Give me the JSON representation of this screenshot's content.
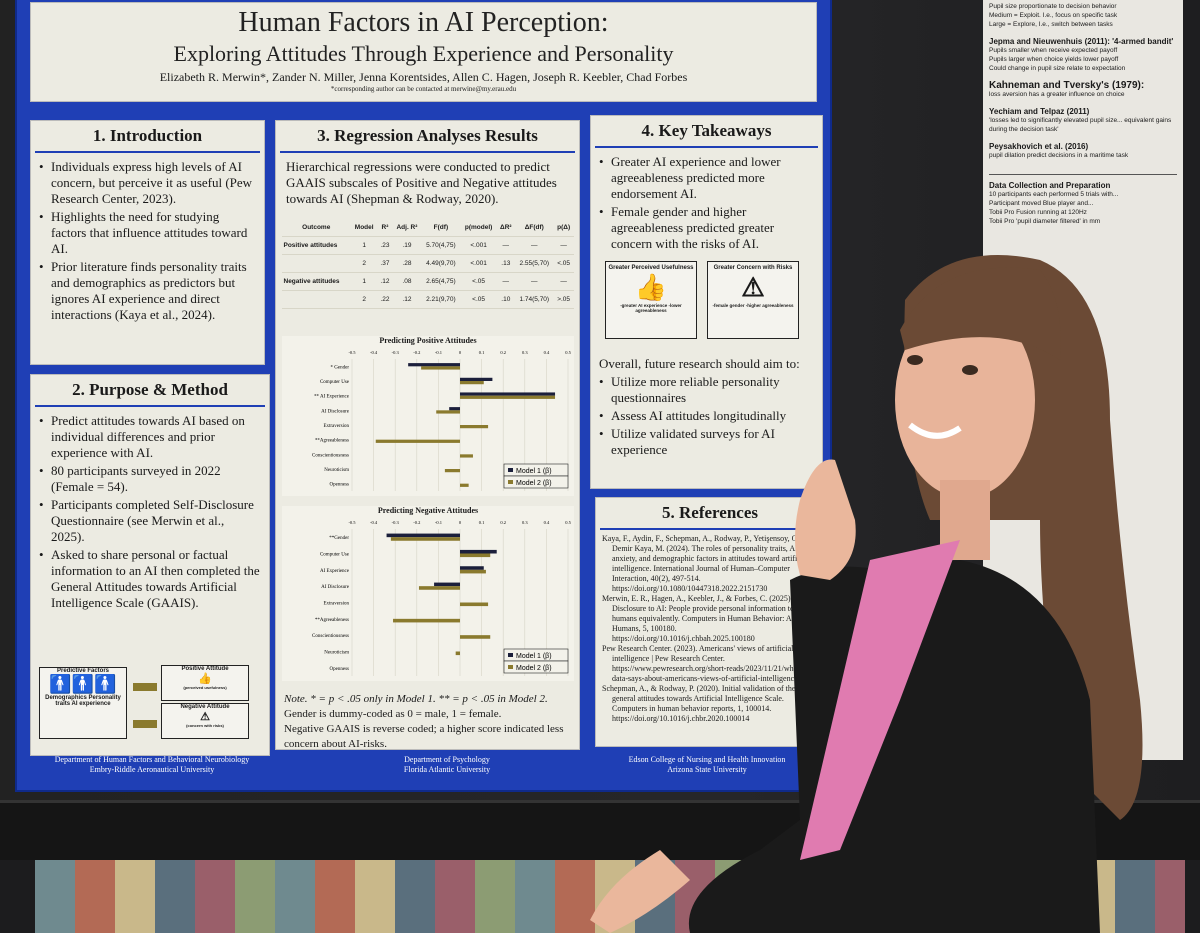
{
  "poster": {
    "title": "Human Factors in AI Perception:",
    "subtitle": "Exploring Attitudes Through Experience and Personality",
    "authors": "Elizabeth R. Merwin*, Zander N. Miller, Jenna Korentsides, Allen C. Hagen, Joseph R. Keebler, Chad Forbes",
    "corresponding": "*corresponding author can be contacted at merwine@my.erau.edu",
    "intro": {
      "title": "1. Introduction",
      "items": [
        "Individuals express high levels of AI concern, but perceive it as useful (Pew Research Center, 2023).",
        "Highlights the need for studying factors that influence attitudes toward AI.",
        "Prior literature finds personality traits and demographics as predictors but ignores AI experience and direct interactions (Kaya et al., 2024)."
      ]
    },
    "purpose": {
      "title": "2. Purpose & Method",
      "items": [
        "Predict attitudes towards AI based on individual differences and prior experience with AI.",
        "80 participants surveyed in 2022 (Female = 54).",
        "Participants completed Self-Disclosure Questionnaire (see Merwin et al., 2025).",
        "Asked to share personal or factual information to an AI then completed the General Attitudes towards Artificial Intelligence Scale (GAAIS)."
      ],
      "diagram": {
        "predictive_title": "Predictive Factors",
        "predictive_items": "Demographics Personality traits AI experience",
        "positive": "Positive Attitude",
        "positive_sub": "(perceived usefulness)",
        "negative": "Negative Attitude",
        "negative_sub": "(concern with risks)"
      }
    },
    "regression": {
      "title": "3. Regression Analyses Results",
      "intro": "Hierarchical regressions were conducted to predict GAAIS subscales of Positive and Negative attitudes towards AI (Shepman & Rodway, 2020).",
      "headers": [
        "Outcome",
        "Model",
        "R²",
        "Adj. R²",
        "F(df)",
        "p(model)",
        "ΔR²",
        "ΔF(df)",
        "p(Δ)"
      ],
      "rows": [
        [
          "Positive attitudes",
          "1",
          ".23",
          ".19",
          "5.70(4,75)",
          "<.001",
          "—",
          "—",
          "—"
        ],
        [
          "",
          "2",
          ".37",
          ".28",
          "4.49(9,70)",
          "<.001",
          ".13",
          "2.55(5,70)",
          "<.05"
        ],
        [
          "Negative attitudes",
          "1",
          ".12",
          ".08",
          "2.65(4,75)",
          "<.05",
          "—",
          "—",
          "—"
        ],
        [
          "",
          "2",
          ".22",
          ".12",
          "2.21(9,70)",
          "<.05",
          ".10",
          "1.74(5,70)",
          ">.05"
        ]
      ],
      "note_line1": "Note. * = p < .05 only in Model 1. ** = p < .05 in Model 2.",
      "note_line2": "Gender is dummy-coded as 0 = male, 1 = female.",
      "note_line3": "Negative GAAIS is reverse coded; a higher score indicated less concern about AI-risks."
    },
    "takeaways": {
      "title": "4. Key Takeaways",
      "items": [
        "Greater AI experience and lower agreeableness predicted more endorsement AI.",
        "Female gender and higher agreeableness predicted greater concern with the risks of AI."
      ],
      "icon1_title": "Greater Perceived Usefulness",
      "icon1_sub": "-greater AI experience -lower agreeableness",
      "icon2_title": "Greater Concern with Risks",
      "icon2_sub": "-female gender -higher agreeableness",
      "future": "Overall, future research should aim to:",
      "future_items": [
        "Utilize more reliable personality questionnaires",
        "Assess AI attitudes longitudinally",
        "Utilize validated surveys for AI experience"
      ]
    },
    "references": {
      "title": "5. References",
      "items": [
        "Kaya, F., Aydin, F., Schepman, A., Rodway, P., Yetişensoy, O., & Demir Kaya, M. (2024). The roles of personality traits, AI anxiety, and demographic factors in attitudes toward artificial intelligence. International Journal of Human–Computer Interaction, 40(2), 497-514. https://doi.org/10.1080/10447318.2022.2151730",
        "Merwin, E. R., Hagen, A., Keebler, J., & Forbes, C. (2025). Self-Disclosure to AI: People provide personal information to AI and humans equivalently. Computers in Human Behavior: Artificial Humans, 5, 100180. https://doi.org/10.1016/j.chbah.2025.100180",
        "Pew Research Center. (2023). Americans' views of artificial intelligence | Pew Research Center. https://www.pewresearch.org/short-reads/2023/11/21/what-the-data-says-about-americans-views-of-artificial-intelligence/",
        "Schepman, A., & Rodway, P. (2020). Initial validation of the general attitudes towards Artificial Intelligence Scale. Computers in human behavior reports, 1, 100014. https://doi.org/10.1016/j.chbr.2020.100014"
      ]
    },
    "footer": [
      {
        "line1": "Department of Human Factors and Behavioral Neurobiology",
        "line2": "Embry-Riddle Aeronautical University"
      },
      {
        "line1": "Department of Psychology",
        "line2": "Florida Atlantic University"
      },
      {
        "line1": "Edson College of Nursing and Health Innovation",
        "line2": "Arizona State University"
      }
    ]
  },
  "chart_data": [
    {
      "type": "bar",
      "orientation": "horizontal",
      "title": "Predicting Positive Attitudes",
      "categories": [
        "* Gender",
        "Computer Use",
        "** AI Experience",
        "AI Disclosure",
        "Extraversion",
        "**Agreeableness",
        "Conscientiousness",
        "Neuroticism",
        "Openness"
      ],
      "xlim": [
        -0.5,
        0.5
      ],
      "xticks": [
        "-0.5",
        "-0.4",
        "-0.3",
        "-0.2",
        "-0.1",
        "0",
        "0.1",
        "0.2",
        "0.3",
        "0.4",
        "0.5"
      ],
      "legend": "bottom-right",
      "series": [
        {
          "name": "Model 1 (β)",
          "color": "#1b1f3b",
          "values": [
            -0.24,
            0.15,
            0.44,
            -0.05,
            null,
            null,
            null,
            null,
            null
          ]
        },
        {
          "name": "Model 2 (β)",
          "color": "#8a7a2e",
          "values": [
            -0.18,
            0.11,
            0.44,
            -0.11,
            0.13,
            -0.39,
            0.06,
            -0.07,
            0.04
          ]
        }
      ]
    },
    {
      "type": "bar",
      "orientation": "horizontal",
      "title": "Predicting Negative Attitudes",
      "categories": [
        "**Gender",
        "Computer Use",
        "AI Experience",
        "AI Disclosure",
        "Extraversion",
        "**Agreeableness",
        "Conscientiousness",
        "Neuroticism",
        "Openness"
      ],
      "xlim": [
        -0.5,
        0.5
      ],
      "xticks": [
        "-0.5",
        "-0.4",
        "-0.3",
        "-0.2",
        "-0.1",
        "0",
        "0.1",
        "0.2",
        "0.3",
        "0.4",
        "0.5"
      ],
      "legend": "bottom-right",
      "series": [
        {
          "name": "Model 1 (β)",
          "color": "#1b1f3b",
          "values": [
            -0.34,
            0.17,
            0.11,
            -0.12,
            null,
            null,
            null,
            null,
            null
          ]
        },
        {
          "name": "Model 2 (β)",
          "color": "#8a7a2e",
          "values": [
            -0.32,
            0.14,
            0.12,
            -0.19,
            0.13,
            -0.31,
            0.14,
            -0.02,
            null
          ]
        }
      ]
    }
  ],
  "side_poster": {
    "lines": [
      "Pupil size proportionate to decision behavior",
      "Medium = Exploit. I.e., focus on specific task",
      "Large = Explore, I.e., switch between tasks"
    ],
    "jepma": "Jepma and Nieuwenhuis (2011): '4-armed bandit'",
    "jepma_items": [
      "Pupils smaller when receive expected payoff",
      "Pupils larger when choice yields lower payoff",
      "Could change in pupil size relate to expectation"
    ],
    "kahneman": "Kahneman and Tversky's (1979):",
    "kahneman_items": [
      "loss aversion has a greater influence on choice"
    ],
    "yechiam": "Yechiam and Telpaz (2011)",
    "yechiam_items": [
      "'losses led to significantly elevated pupil size... equivalent gains during the decision task'"
    ],
    "peysakhovich": "Peysakhovich et al. (2016)",
    "peysakhovich_items": [
      "pupil dilation predict decisions in a maritime task"
    ],
    "data_title": "Data Collection and Preparation",
    "data_items": [
      "10 participants each performed 5 trials with...",
      "Participant moved Blue player and...",
      "Tobii Pro Fusion running at 120Hz",
      "Tobii Pro 'pupil diameter filtered' in mm"
    ]
  }
}
